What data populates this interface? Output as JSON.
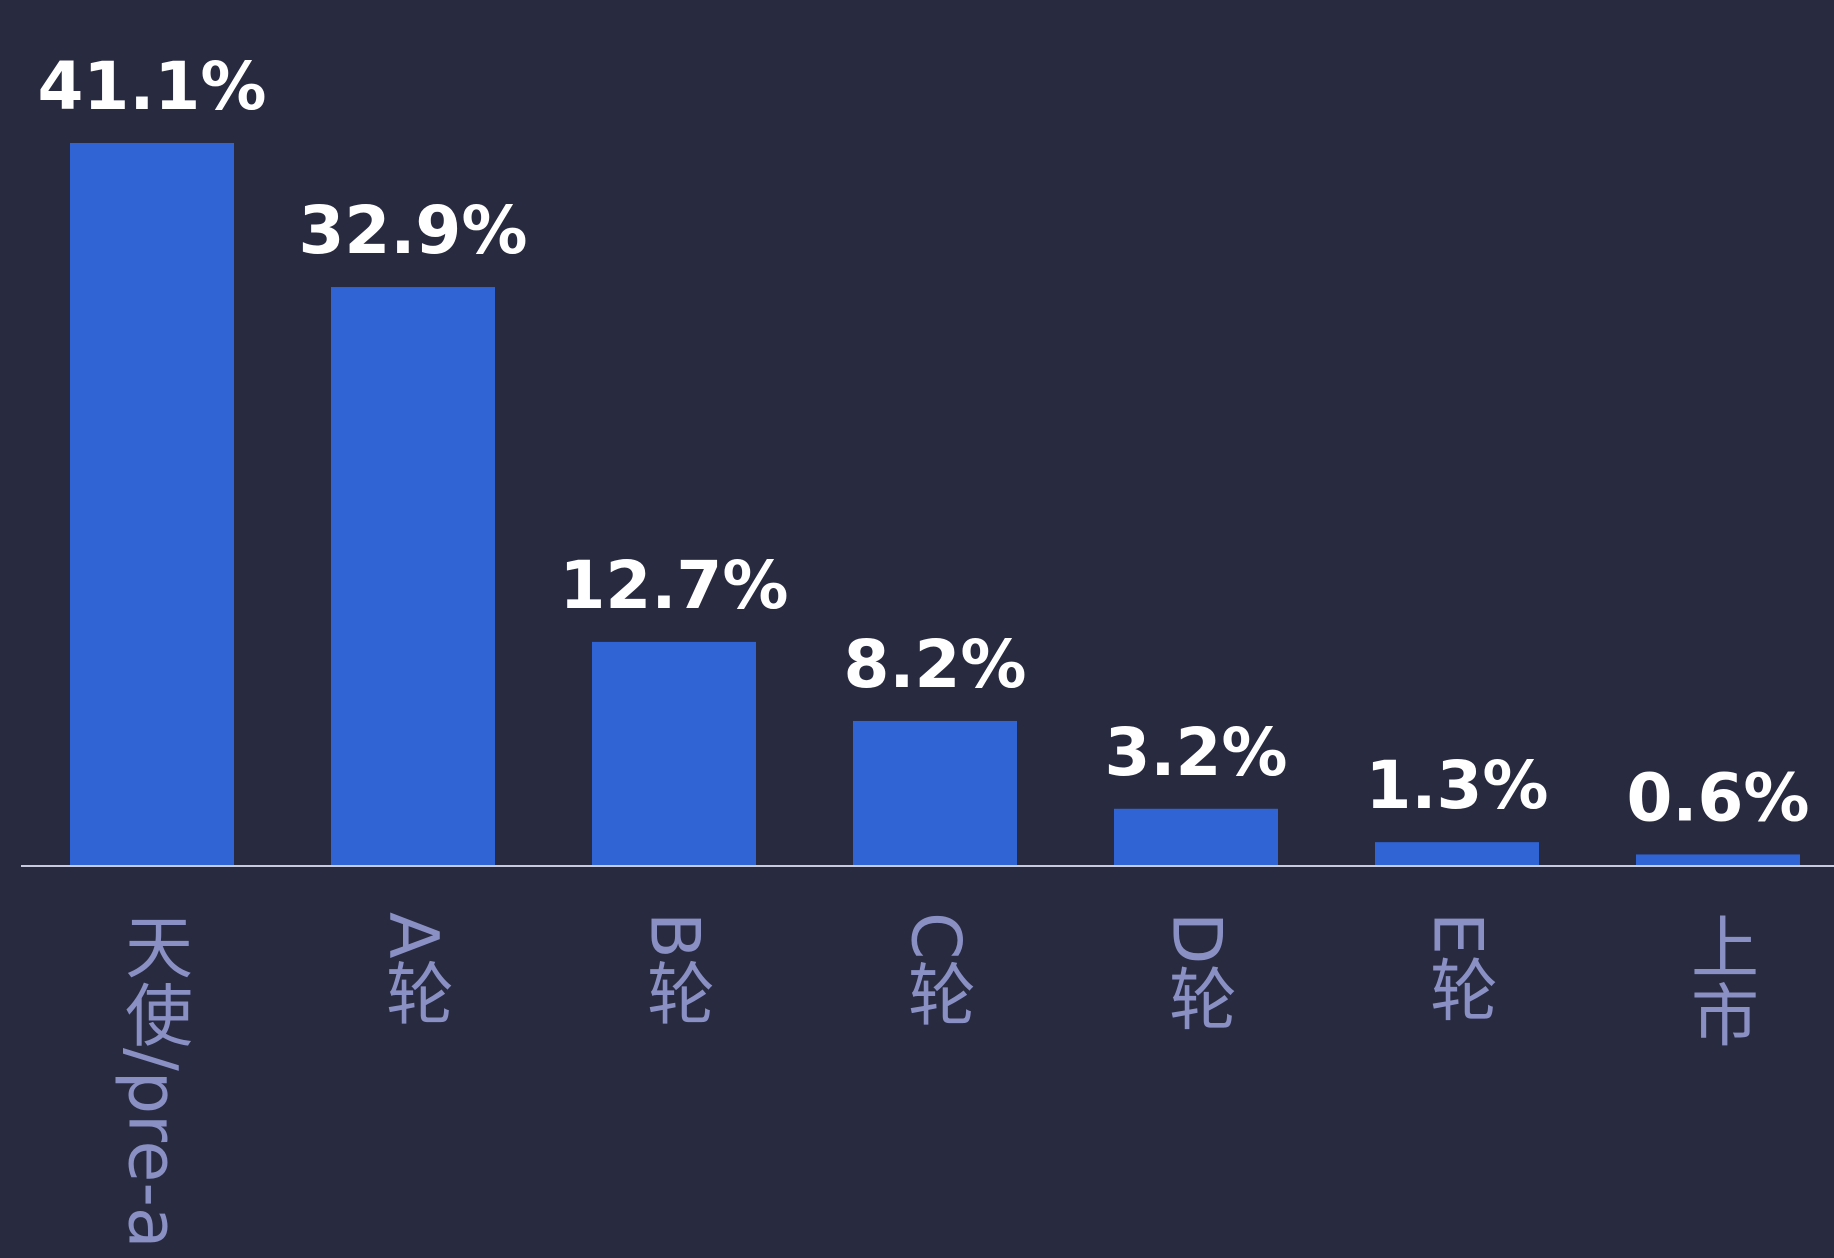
{
  "chart_data": {
    "type": "bar",
    "categories": [
      "天使/pre-a",
      "A轮",
      "B轮",
      "C轮",
      "D轮",
      "E轮",
      "上市"
    ],
    "values": [
      41.1,
      32.9,
      12.7,
      8.2,
      3.2,
      1.3,
      0.6
    ],
    "value_labels": [
      "41.1%",
      "32.9%",
      "12.7%",
      "8.2%",
      "3.2%",
      "1.3%",
      "0.6%"
    ],
    "color": "#3063d4"
  }
}
